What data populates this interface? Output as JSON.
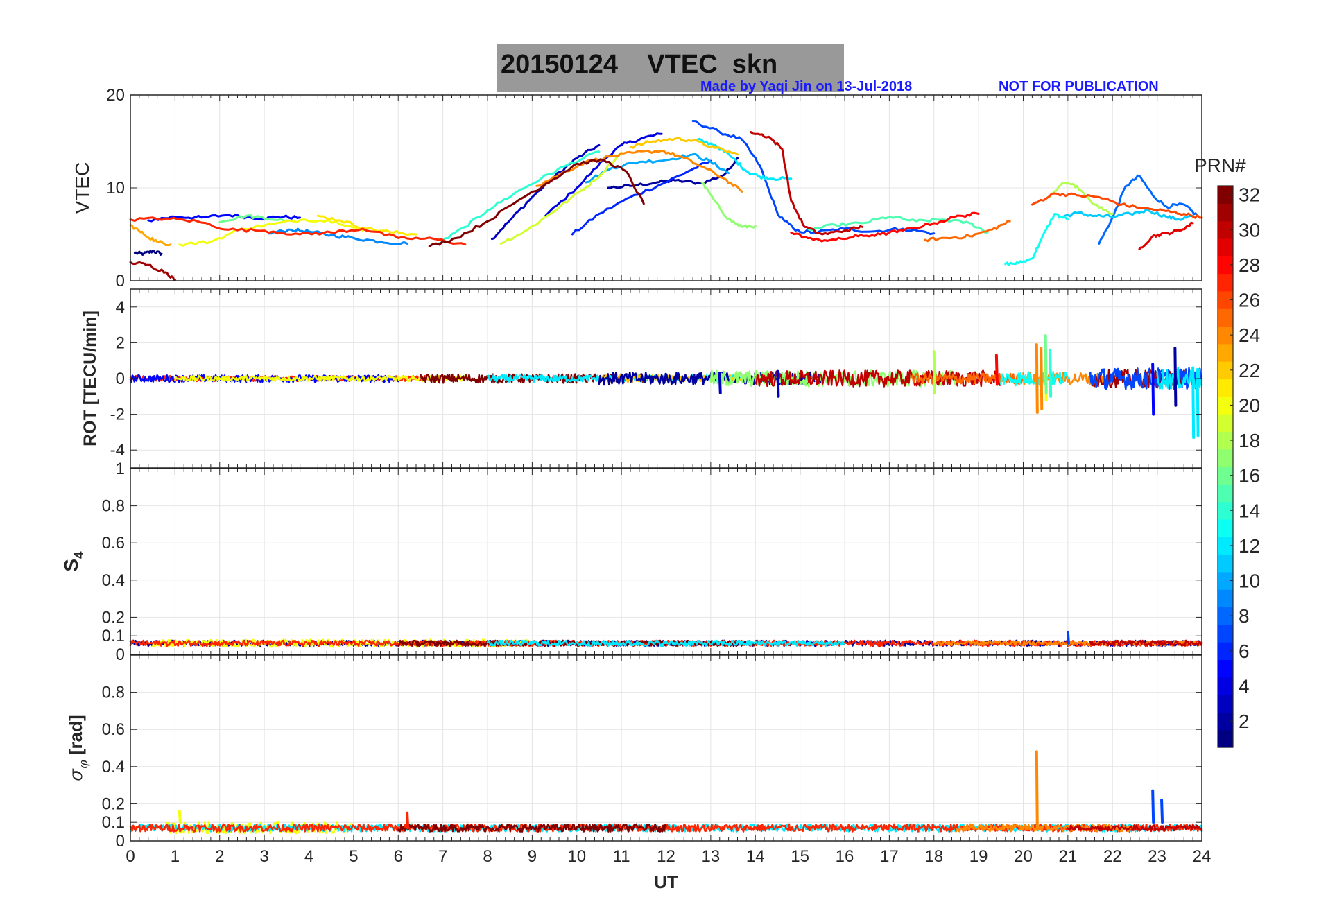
{
  "figure": {
    "title": "20150124    VTEC  skn",
    "credit_left": "Made by Yaqi Jin on 13-Jul-2018",
    "credit_right": "NOT FOR PUBLICATION"
  },
  "colorbar": {
    "label": "PRN#",
    "min": 1,
    "max": 32,
    "ticks": [
      2,
      4,
      6,
      8,
      10,
      12,
      14,
      16,
      18,
      20,
      22,
      24,
      26,
      28,
      30,
      32
    ],
    "colormap": "jet"
  },
  "chart_data": [
    {
      "type": "line",
      "ylabel": "VTEC",
      "xlim": [
        0,
        24
      ],
      "ylim": [
        0,
        20
      ],
      "yticks": [
        0,
        10,
        20
      ],
      "grid": true,
      "series": [
        {
          "prn": 1,
          "x": [
            0.1,
            0.3,
            0.5,
            0.7
          ],
          "y": [
            3.0,
            2.9,
            3.2,
            2.9
          ]
        },
        {
          "prn": 2,
          "x": [
            10.7,
            11.2,
            11.8,
            12.2,
            12.8,
            13.3,
            13.6
          ],
          "y": [
            10.0,
            10.2,
            10.6,
            10.8,
            10.5,
            11.4,
            13.2
          ]
        },
        {
          "prn": 3,
          "x": [
            8.1,
            8.5,
            9.0,
            9.5,
            10.0,
            10.5
          ],
          "y": [
            4.5,
            6.5,
            9.0,
            11.2,
            13.2,
            14.6
          ]
        },
        {
          "prn": 4,
          "x": [
            9.3,
            10.0,
            10.6,
            11.0,
            11.5,
            11.9
          ],
          "y": [
            7.0,
            10.0,
            13.0,
            14.6,
            15.4,
            15.8
          ]
        },
        {
          "prn": 5,
          "x": [
            0.4,
            1.0,
            1.6,
            2.2,
            2.9,
            3.3,
            3.8
          ],
          "y": [
            6.5,
            6.9,
            6.8,
            7.1,
            6.7,
            6.9,
            6.8
          ]
        },
        {
          "prn": 6,
          "x": [
            9.9,
            10.5,
            11.2,
            11.9,
            12.5,
            13.0
          ],
          "y": [
            5.0,
            7.2,
            9.0,
            10.4,
            11.8,
            12.9
          ]
        },
        {
          "prn": 7,
          "x": [
            12.6,
            13.2,
            13.7,
            14.1,
            14.5,
            14.9,
            15.3,
            16.0,
            16.6,
            17.3,
            18.0
          ],
          "y": [
            17.2,
            16.0,
            15.2,
            12.4,
            7.2,
            5.4,
            5.2,
            5.6,
            5.3,
            5.6,
            5.1
          ]
        },
        {
          "prn": 8,
          "x": [
            21.7,
            22.0,
            22.3,
            22.6,
            22.9,
            23.2,
            23.6,
            23.9
          ],
          "y": [
            4.0,
            6.8,
            10.2,
            11.3,
            9.2,
            8.0,
            8.2,
            7.0
          ]
        },
        {
          "prn": 9,
          "x": [
            3.1,
            3.6,
            4.0,
            4.5,
            5.0,
            5.6,
            6.2
          ],
          "y": [
            5.1,
            5.5,
            5.3,
            4.9,
            4.6,
            4.2,
            4.0
          ]
        },
        {
          "prn": 10,
          "x": [
            10.2,
            10.8,
            11.4,
            12.0,
            12.6,
            13.0,
            13.4
          ],
          "y": [
            10.6,
            12.2,
            12.8,
            13.0,
            13.6,
            12.8,
            11.6
          ]
        },
        {
          "prn": 11,
          "x": [
            20.8,
            21.2,
            21.6,
            22.0,
            22.4,
            22.8,
            23.2,
            23.5,
            23.8
          ],
          "y": [
            6.8,
            7.3,
            7.0,
            6.9,
            7.2,
            7.6,
            6.9,
            6.6,
            7.0
          ]
        },
        {
          "prn": 12,
          "x": [
            12.7,
            13.1,
            13.5,
            13.8,
            14.1,
            14.4,
            14.8
          ],
          "y": [
            15.2,
            14.6,
            13.2,
            11.8,
            11.2,
            11.0,
            11.0
          ]
        },
        {
          "prn": 13,
          "x": [
            19.6,
            19.9,
            20.2,
            20.4,
            20.7,
            21.0
          ],
          "y": [
            1.8,
            1.9,
            2.4,
            4.4,
            7.2,
            6.6
          ]
        },
        {
          "prn": 14,
          "x": [
            6.9,
            7.5,
            8.0,
            8.6,
            9.2,
            9.8,
            10.5
          ],
          "y": [
            4.0,
            5.8,
            7.6,
            9.4,
            11.0,
            12.5,
            13.9
          ]
        },
        {
          "prn": 15,
          "x": [
            15.2,
            15.8,
            16.4,
            17.0,
            17.6,
            18.2,
            18.8,
            19.2
          ],
          "y": [
            5.5,
            6.0,
            6.2,
            6.9,
            6.4,
            6.6,
            6.2,
            5.2
          ]
        },
        {
          "prn": 16,
          "x": [
            2.0,
            2.6,
            3.0,
            3.5
          ],
          "y": [
            6.3,
            7.0,
            6.7,
            6.5
          ]
        },
        {
          "prn": 17,
          "x": [
            12.8,
            13.1,
            13.4,
            13.7,
            14.0
          ],
          "y": [
            10.6,
            8.5,
            6.6,
            5.8,
            5.9
          ]
        },
        {
          "prn": 18,
          "x": [
            20.6,
            20.9,
            21.2,
            21.6,
            22.0
          ],
          "y": [
            9.0,
            10.5,
            10.2,
            8.2,
            7.2
          ]
        },
        {
          "prn": 19,
          "x": [
            8.3,
            8.9,
            9.4,
            9.9,
            10.4,
            11.0
          ],
          "y": [
            4.0,
            5.5,
            7.2,
            9.0,
            10.8,
            13.8
          ]
        },
        {
          "prn": 20,
          "x": [
            1.1,
            1.8,
            2.5,
            3.2,
            3.9,
            4.6,
            5.2
          ],
          "y": [
            3.9,
            4.2,
            5.6,
            6.1,
            6.6,
            6.4,
            5.4
          ]
        },
        {
          "prn": 21,
          "x": [
            4.2,
            4.7,
            5.3,
            5.9,
            6.4
          ],
          "y": [
            7.0,
            6.5,
            5.6,
            5.2,
            5.0
          ]
        },
        {
          "prn": 22,
          "x": [
            11.2,
            11.7,
            12.2,
            12.6,
            13.1,
            13.6
          ],
          "y": [
            14.4,
            15.0,
            15.3,
            15.1,
            14.3,
            13.6
          ]
        },
        {
          "prn": 23,
          "x": [
            0.0,
            0.3,
            0.6,
            0.9
          ],
          "y": [
            6.0,
            5.0,
            4.2,
            3.9
          ]
        },
        {
          "prn": 24,
          "x": [
            9.1,
            9.6,
            10.2,
            10.8,
            11.3,
            11.9,
            12.3,
            12.8,
            13.3,
            13.7
          ],
          "y": [
            10.2,
            11.4,
            12.8,
            13.4,
            13.8,
            14.0,
            13.4,
            12.3,
            11.0,
            9.6
          ]
        },
        {
          "prn": 25,
          "x": [
            17.8,
            18.3,
            18.8,
            19.3,
            19.7
          ],
          "y": [
            4.4,
            4.6,
            4.8,
            5.5,
            6.4
          ]
        },
        {
          "prn": 26,
          "x": [
            20.2,
            20.7,
            21.2,
            21.7,
            22.2,
            22.7,
            23.2,
            23.6,
            24.0
          ],
          "y": [
            8.2,
            9.4,
            9.2,
            9.0,
            8.2,
            7.8,
            7.5,
            7.2,
            6.8
          ]
        },
        {
          "prn": 27,
          "x": [
            0.0,
            0.8,
            1.5,
            2.2,
            3.0,
            3.8,
            4.5,
            5.2,
            6.0,
            6.8,
            7.5
          ],
          "y": [
            6.6,
            6.7,
            6.4,
            5.5,
            5.4,
            5.0,
            5.2,
            5.6,
            4.6,
            4.5,
            3.9
          ]
        },
        {
          "prn": 28,
          "x": [
            14.8,
            15.3,
            15.8,
            16.3,
            16.8,
            17.3,
            18.0,
            18.6,
            19.0
          ],
          "y": [
            5.2,
            4.4,
            4.4,
            4.8,
            5.0,
            5.4,
            6.2,
            7.0,
            7.2
          ]
        },
        {
          "prn": 29,
          "x": [
            22.6,
            22.9,
            23.2,
            23.5,
            23.8
          ],
          "y": [
            3.4,
            4.8,
            5.1,
            5.4,
            6.2
          ]
        },
        {
          "prn": 30,
          "x": [
            13.9,
            14.3,
            14.6,
            14.8,
            15.1,
            15.5,
            16.0,
            16.4
          ],
          "y": [
            16.0,
            15.5,
            14.2,
            8.6,
            5.8,
            5.0,
            5.4,
            5.8
          ]
        },
        {
          "prn": 31,
          "x": [
            0.0,
            0.4,
            0.8,
            1.0
          ],
          "y": [
            2.0,
            1.7,
            0.9,
            0.1
          ]
        },
        {
          "prn": 32,
          "x": [
            6.7,
            7.3,
            8.0,
            8.7,
            9.5,
            10.0,
            10.6,
            11.1,
            11.5
          ],
          "y": [
            3.7,
            4.6,
            6.4,
            8.7,
            11.0,
            12.6,
            13.0,
            11.8,
            8.3
          ]
        }
      ]
    },
    {
      "type": "line",
      "ylabel": "ROT [TECU/min]",
      "xlim": [
        0,
        24
      ],
      "ylim": [
        -5,
        5
      ],
      "yticks": [
        -4,
        -2,
        0,
        2,
        4
      ],
      "grid": true,
      "noise_segments": [
        {
          "prn": 27,
          "x0": 0.0,
          "x1": 7.0,
          "amp": 0.15
        },
        {
          "prn": 5,
          "x0": 0.0,
          "x1": 6.0,
          "amp": 0.2
        },
        {
          "prn": 20,
          "x0": 1.0,
          "x1": 7.5,
          "amp": 0.15
        },
        {
          "prn": 32,
          "x0": 6.5,
          "x1": 11.5,
          "amp": 0.25
        },
        {
          "prn": 12,
          "x0": 8.0,
          "x1": 14.5,
          "amp": 0.2
        },
        {
          "prn": 22,
          "x0": 10.5,
          "x1": 14.0,
          "amp": 0.2
        },
        {
          "prn": 2,
          "x0": 10.5,
          "x1": 15.5,
          "amp": 0.35
        },
        {
          "prn": 17,
          "x0": 13.0,
          "x1": 18.5,
          "amp": 0.45
        },
        {
          "prn": 30,
          "x0": 14.0,
          "x1": 19.5,
          "amp": 0.45
        },
        {
          "prn": 25,
          "x0": 17.5,
          "x1": 20.0,
          "amp": 0.3
        },
        {
          "prn": 24,
          "x0": 20.0,
          "x1": 22.0,
          "amp": 0.35
        },
        {
          "prn": 13,
          "x0": 19.5,
          "x1": 21.0,
          "amp": 0.4
        },
        {
          "prn": 31,
          "x0": 21.5,
          "x1": 24.0,
          "amp": 0.5
        },
        {
          "prn": 7,
          "x0": 21.5,
          "x1": 24.0,
          "amp": 0.6
        },
        {
          "prn": 12,
          "x0": 23.0,
          "x1": 24.0,
          "amp": 0.6
        }
      ],
      "spikes": [
        {
          "prn": 24,
          "x": 20.3,
          "ymin": -1.9,
          "ymax": 1.9
        },
        {
          "prn": 24,
          "x": 20.4,
          "ymin": -1.7,
          "ymax": 1.7
        },
        {
          "prn": 20,
          "x": 20.5,
          "ymin": -1.2,
          "ymax": 1.2
        },
        {
          "prn": 16,
          "x": 20.5,
          "ymin": -0.8,
          "ymax": 2.4
        },
        {
          "prn": 14,
          "x": 20.6,
          "ymin": -1.0,
          "ymax": 1.6
        },
        {
          "prn": 18,
          "x": 18.0,
          "ymin": -0.8,
          "ymax": 1.5
        },
        {
          "prn": 28,
          "x": 19.4,
          "ymin": -0.3,
          "ymax": 1.3
        },
        {
          "prn": 5,
          "x": 22.9,
          "ymin": -2.0,
          "ymax": 0.8
        },
        {
          "prn": 2,
          "x": 23.4,
          "ymin": -1.5,
          "ymax": 1.7
        },
        {
          "prn": 12,
          "x": 23.8,
          "ymin": -3.3,
          "ymax": 0.6
        },
        {
          "prn": 12,
          "x": 23.9,
          "ymin": -3.2,
          "ymax": 0.5
        },
        {
          "prn": 3,
          "x": 14.5,
          "ymin": -1.0,
          "ymax": 0.4
        },
        {
          "prn": 3,
          "x": 13.2,
          "ymin": -0.8,
          "ymax": 0.3
        }
      ]
    },
    {
      "type": "line",
      "ylabel": "S4",
      "xlim": [
        0,
        24
      ],
      "ylim": [
        0,
        1
      ],
      "yticks": [
        0,
        0.1,
        0.2,
        0.4,
        0.6,
        0.8,
        1
      ],
      "grid": true,
      "baseline": 0.06,
      "noise_segments": [
        {
          "prn": 2,
          "x0": 0.0,
          "x1": 24.0,
          "amp": 0.015
        },
        {
          "prn": 20,
          "x0": 0.5,
          "x1": 9.0,
          "amp": 0.02
        },
        {
          "prn": 27,
          "x0": 0.0,
          "x1": 24.0,
          "amp": 0.015
        },
        {
          "prn": 32,
          "x0": 6.0,
          "x1": 14.0,
          "amp": 0.015
        },
        {
          "prn": 12,
          "x0": 8.0,
          "x1": 16.0,
          "amp": 0.015
        },
        {
          "prn": 24,
          "x0": 18.0,
          "x1": 24.0,
          "amp": 0.012
        },
        {
          "prn": 30,
          "x0": 21.5,
          "x1": 24.0,
          "amp": 0.015
        }
      ],
      "spikes": [
        {
          "prn": 7,
          "x": 21.0,
          "ymin": 0.06,
          "ymax": 0.12
        }
      ]
    },
    {
      "type": "line",
      "ylabel": "σφ [rad]",
      "xlim": [
        0,
        24
      ],
      "ylim": [
        0,
        1
      ],
      "yticks": [
        0,
        0.1,
        0.2,
        0.4,
        0.6,
        0.8
      ],
      "xticks": [
        0,
        1,
        2,
        3,
        4,
        5,
        6,
        7,
        8,
        9,
        10,
        11,
        12,
        13,
        14,
        15,
        16,
        17,
        18,
        19,
        20,
        21,
        22,
        23,
        24
      ],
      "xlabel": "UT",
      "grid": true,
      "baseline": 0.07,
      "noise_segments": [
        {
          "prn": 20,
          "x0": 0.8,
          "x1": 5.0,
          "amp": 0.03
        },
        {
          "prn": 12,
          "x0": 0.0,
          "x1": 24.0,
          "amp": 0.02
        },
        {
          "prn": 27,
          "x0": 0.0,
          "x1": 24.0,
          "amp": 0.02
        },
        {
          "prn": 32,
          "x0": 6.0,
          "x1": 12.0,
          "amp": 0.02
        },
        {
          "prn": 24,
          "x0": 18.5,
          "x1": 22.5,
          "amp": 0.02
        },
        {
          "prn": 30,
          "x0": 21.0,
          "x1": 24.0,
          "amp": 0.015
        }
      ],
      "spikes": [
        {
          "prn": 24,
          "x": 20.3,
          "ymin": 0.06,
          "ymax": 0.48
        },
        {
          "prn": 7,
          "x": 22.9,
          "ymin": 0.1,
          "ymax": 0.27
        },
        {
          "prn": 7,
          "x": 23.1,
          "ymin": 0.1,
          "ymax": 0.22
        },
        {
          "prn": 27,
          "x": 6.2,
          "ymin": 0.07,
          "ymax": 0.15
        },
        {
          "prn": 20,
          "x": 1.1,
          "ymin": 0.1,
          "ymax": 0.16
        }
      ]
    }
  ]
}
